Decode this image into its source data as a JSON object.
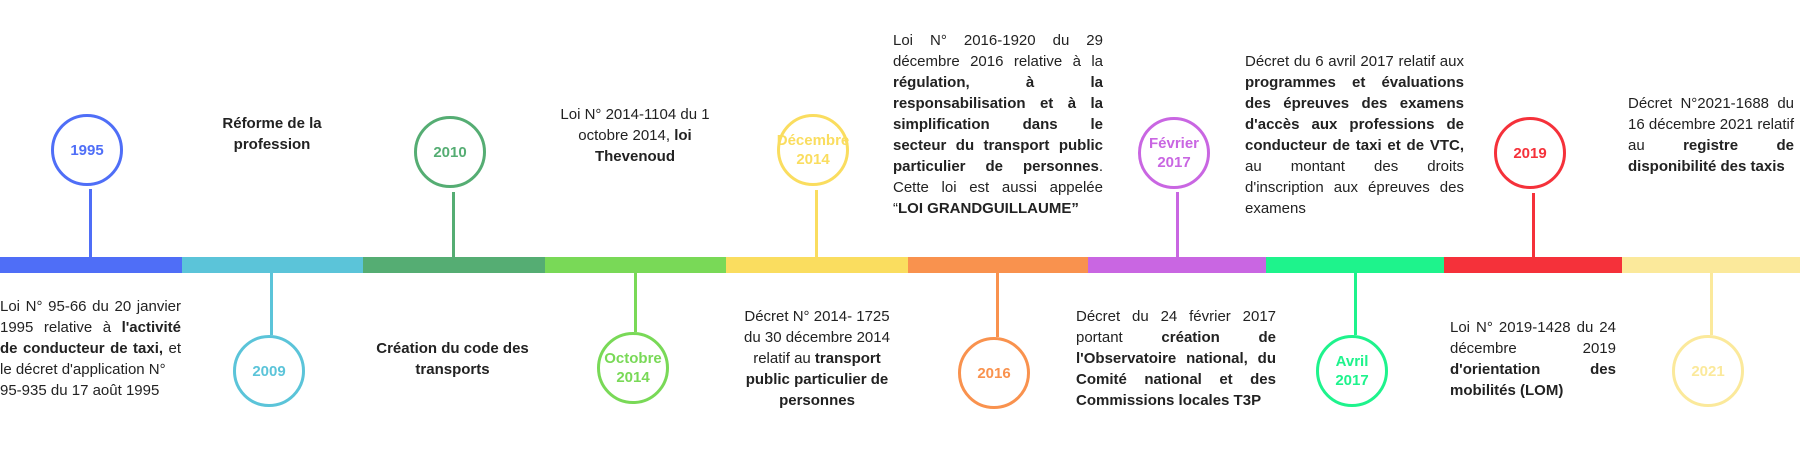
{
  "events": [
    {
      "date": "1995",
      "color": "#4f6ef7",
      "desc": "Loi N° 95-66 du 20 janvier 1995 relative à <b>l'activité de conducteur de taxi,</b> et le décret d'application N°<br>95-935 du 17 août 1995"
    },
    {
      "date": "2009",
      "color": "#5bc4d9",
      "desc": "<b>Réforme de la profession</b>"
    },
    {
      "date": "2010",
      "color": "#55ad73",
      "desc": "<b>Création du code des transports</b>"
    },
    {
      "date": "Octobre 2014",
      "color": "#79d957",
      "desc": "Loi N° 2014-1104 du 1 octobre 2014, <b>loi Thevenoud</b>"
    },
    {
      "date": "Décembre 2014",
      "color": "#fadd5f",
      "desc": "Décret N° 2014- 1725 du 30 décembre 2014 relatif au <b>transport public particulier de personnes</b>"
    },
    {
      "date": "2016",
      "color": "#f9924e",
      "desc": "Loi N° 2016-1920 du 29 décembre 2016 relative à la <b>régulation, à la responsabilisation et à la simplification dans le secteur du transport public particulier de personnes</b>. Cette loi est aussi appelée “<b>LOI GRANDGUILLAUME”</b>"
    },
    {
      "date": "Février 2017",
      "color": "#c966e2",
      "desc": "Décret du 24 février 2017 portant <b>création de l'Observatoire national, du Comité national et des Commissions locales T3P</b>"
    },
    {
      "date": "Avril 2017",
      "color": "#1ef38c",
      "desc": "Décret du 6 avril 2017 relatif aux <b>programmes et évaluations des épreuves des examens d'accès aux professions de conducteur de taxi et de VTC,</b> au montant des droits d'inscription aux épreuves des examens"
    },
    {
      "date": "2019",
      "color": "#f5313a",
      "desc": "Loi N° 2019-1428 du 24 décembre 2019 <b>d'orientation des mobilités (LOM)</b>"
    },
    {
      "date": "2021",
      "color": "#fbe99b",
      "desc": "Décret N°2021-1688 du 16 décembre 2021 relatif au <b>registre de disponibilité des taxis</b>"
    }
  ]
}
